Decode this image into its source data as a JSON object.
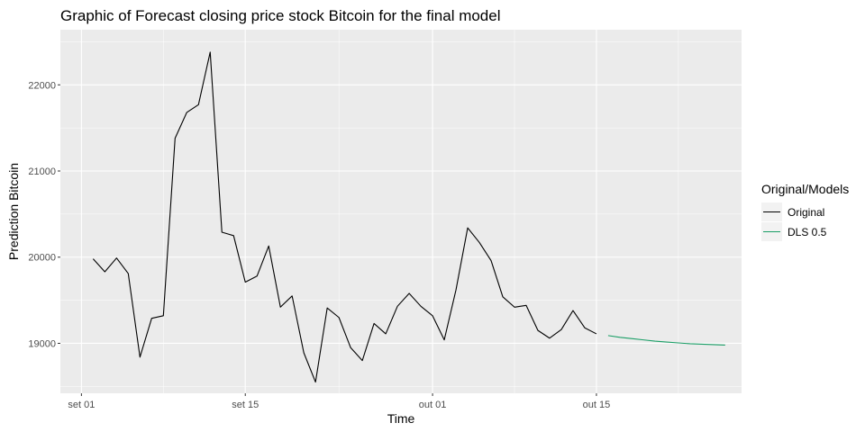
{
  "chart_data": {
    "type": "line",
    "title": "Graphic of Forecast closing price stock Bitcoin for the final model",
    "xlabel": "Time",
    "ylabel": "Prediction Bitcoin",
    "x_ticks": [
      {
        "label": "set 01",
        "value": 0
      },
      {
        "label": "set 15",
        "value": 14
      },
      {
        "label": "out 01",
        "value": 30
      },
      {
        "label": "out 15",
        "value": 44
      }
    ],
    "y_ticks": [
      19000,
      20000,
      21000,
      22000
    ],
    "xlim": [
      -1.8,
      56.4
    ],
    "ylim": [
      18420,
      22640
    ],
    "grid": true,
    "legend_position": "right",
    "legend_title": "Original/Models",
    "series": [
      {
        "name": "Original",
        "color": "#000000",
        "x": [
          1,
          2,
          3,
          4,
          5,
          6,
          7,
          8,
          9,
          10,
          11,
          12,
          13,
          14,
          15,
          16,
          17,
          18,
          19,
          20,
          21,
          22,
          23,
          24,
          25,
          26,
          27,
          28,
          29,
          30,
          31,
          32,
          33,
          34,
          35,
          36,
          37,
          38,
          39,
          40,
          41,
          42,
          43,
          44
        ],
        "values": [
          19980,
          19830,
          19990,
          19810,
          18840,
          19290,
          19320,
          21380,
          21680,
          21770,
          22380,
          20290,
          20250,
          19710,
          19780,
          20130,
          19420,
          19550,
          18890,
          18550,
          19410,
          19300,
          18950,
          18800,
          19230,
          19110,
          19430,
          19580,
          19430,
          19320,
          19040,
          19620,
          20340,
          20170,
          19960,
          19540,
          19420,
          19440,
          19150,
          19060,
          19160,
          19380,
          19180,
          19110
        ]
      },
      {
        "name": "DLS 0.5",
        "color": "#1a9e66",
        "x": [
          45,
          46,
          47,
          48,
          49,
          50,
          51,
          52,
          53,
          54,
          55
        ],
        "values": [
          19090,
          19070,
          19055,
          19040,
          19025,
          19015,
          19005,
          18995,
          18990,
          18985,
          18980
        ]
      }
    ]
  }
}
